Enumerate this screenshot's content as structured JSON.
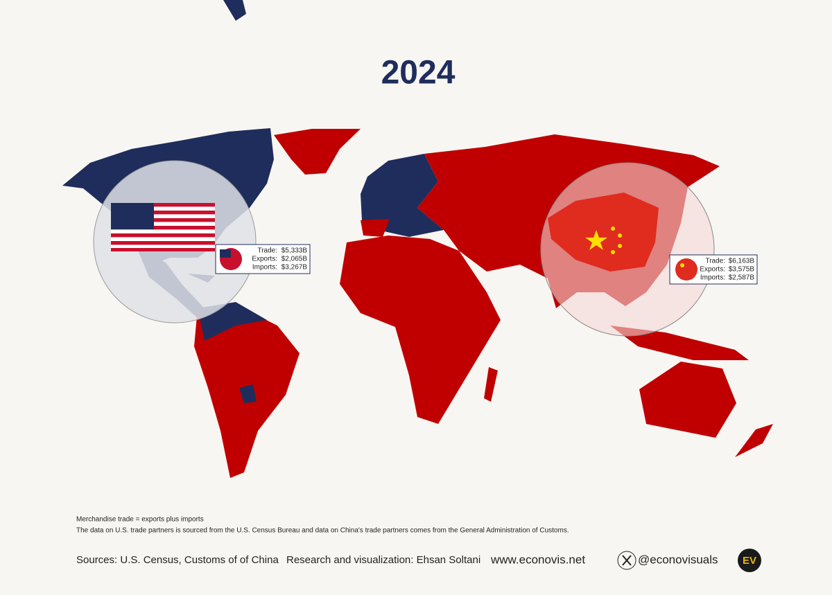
{
  "title": "2024",
  "us_box": {
    "trade_label": "Trade:",
    "trade": "$5,333B",
    "exports_label": "Exports:",
    "exports": "$2,065B",
    "imports_label": "Imports:",
    "imports": "$3,267B"
  },
  "china_box": {
    "trade_label": "Trade:",
    "trade": "$6,163B",
    "exports_label": "Exports:",
    "exports": "$3,575B",
    "imports_label": "Imports:",
    "imports": "$2,587B"
  },
  "notes": [
    "Merchandise trade = exports plus imports",
    "The data on U.S. trade partners is sourced from the U.S. Census Bureau and data on China's trade partners comes from the General Administration of Customs."
  ],
  "footer": {
    "sources": "Sources: U.S. Census, Customs of of China",
    "credit": "Research and visualization: Ehsan Soltani",
    "website": "www.econovis.net",
    "handle": "@econovisuals",
    "logo": "EV"
  }
}
